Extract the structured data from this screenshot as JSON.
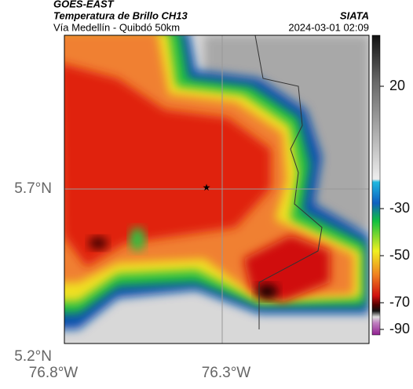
{
  "header": {
    "title": "GOES-EAST",
    "subtitle": "Temperatura de Brillo CH13",
    "source": "SIATA",
    "route": "Vía Medellín - Quibdó 50km",
    "timestamp": "2024-03-01 02:09"
  },
  "map": {
    "lat_labels": [
      "5.7°N",
      "5.2°N"
    ],
    "lon_labels": [
      "76.8°W",
      "76.3°W"
    ]
  },
  "colorbar": {
    "ticks": [
      20,
      -30,
      -50,
      -70,
      -90
    ]
  }
}
